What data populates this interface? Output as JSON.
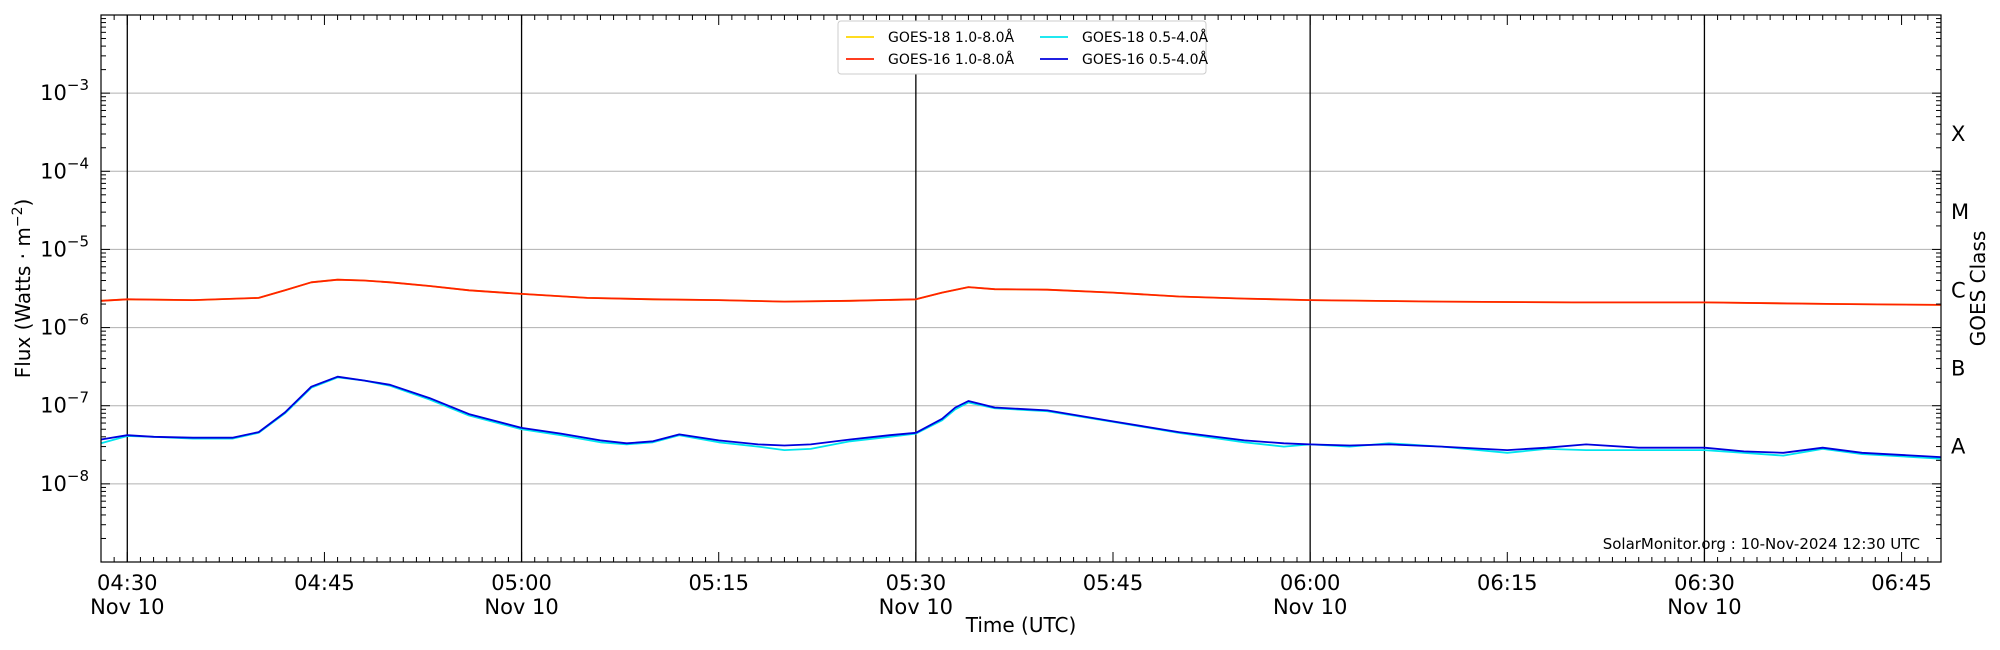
{
  "chart_data": {
    "type": "line",
    "x_axis": {
      "label": "Time (UTC)",
      "range": [
        "04:28",
        "06:48"
      ],
      "ticks": [
        {
          "time": "04:30",
          "label": "04:30",
          "date": "Nov 10"
        },
        {
          "time": "04:45",
          "label": "04:45",
          "date": ""
        },
        {
          "time": "05:00",
          "label": "05:00",
          "date": "Nov 10"
        },
        {
          "time": "05:15",
          "label": "05:15",
          "date": ""
        },
        {
          "time": "05:30",
          "label": "05:30",
          "date": "Nov 10"
        },
        {
          "time": "05:45",
          "label": "05:45",
          "date": ""
        },
        {
          "time": "06:00",
          "label": "06:00",
          "date": "Nov 10"
        },
        {
          "time": "06:15",
          "label": "06:15",
          "date": ""
        },
        {
          "time": "06:30",
          "label": "06:30",
          "date": "Nov 10"
        },
        {
          "time": "06:45",
          "label": "06:45",
          "date": ""
        }
      ],
      "vertical_lines": [
        "04:30",
        "05:00",
        "05:30",
        "06:00",
        "06:30"
      ]
    },
    "y_axis": {
      "label": "Flux (Watts · m⁻²)",
      "scale": "log",
      "range": [
        1e-09,
        0.01
      ],
      "ticks": [
        {
          "value": 1e-08,
          "base": "10",
          "exp": "−8"
        },
        {
          "value": 1e-07,
          "base": "10",
          "exp": "−7"
        },
        {
          "value": 1e-06,
          "base": "10",
          "exp": "−6"
        },
        {
          "value": 1e-05,
          "base": "10",
          "exp": "−5"
        },
        {
          "value": 0.0001,
          "base": "10",
          "exp": "−4"
        },
        {
          "value": 0.001,
          "base": "10",
          "exp": "−3"
        }
      ],
      "grid": true
    },
    "right_axis": {
      "label": "GOES Class",
      "classes": [
        {
          "label": "A",
          "value": 3e-08
        },
        {
          "label": "B",
          "value": 3e-07
        },
        {
          "label": "C",
          "value": 3e-06
        },
        {
          "label": "M",
          "value": 3e-05
        },
        {
          "label": "X",
          "value": 0.0003
        }
      ]
    },
    "legend": {
      "position": "top-center",
      "entries": [
        {
          "label": "GOES-18 1.0-8.0Å",
          "color": "#ffd700"
        },
        {
          "label": "GOES-18 0.5-4.0Å",
          "color": "#00e5ee"
        },
        {
          "label": "GOES-16 1.0-8.0Å",
          "color": "#ff2200"
        },
        {
          "label": "GOES-16 0.5-4.0Å",
          "color": "#0000dd"
        }
      ]
    },
    "annotation": "SolarMonitor.org : 10-Nov-2024 12:30 UTC",
    "series": [
      {
        "name": "GOES-18 1.0-8.0Å",
        "color": "#ffd700",
        "points": [
          [
            "04:28",
            2.2e-06
          ],
          [
            "04:30",
            2.3e-06
          ],
          [
            "04:35",
            2.25e-06
          ],
          [
            "04:40",
            2.4e-06
          ],
          [
            "04:42",
            3e-06
          ],
          [
            "04:44",
            3.8e-06
          ],
          [
            "04:46",
            4.1e-06
          ],
          [
            "04:48",
            4e-06
          ],
          [
            "04:50",
            3.8e-06
          ],
          [
            "04:53",
            3.4e-06
          ],
          [
            "04:56",
            3e-06
          ],
          [
            "05:00",
            2.7e-06
          ],
          [
            "05:05",
            2.4e-06
          ],
          [
            "05:10",
            2.3e-06
          ],
          [
            "05:15",
            2.25e-06
          ],
          [
            "05:20",
            2.15e-06
          ],
          [
            "05:25",
            2.2e-06
          ],
          [
            "05:30",
            2.3e-06
          ],
          [
            "05:32",
            2.8e-06
          ],
          [
            "05:34",
            3.3e-06
          ],
          [
            "05:36",
            3.1e-06
          ],
          [
            "05:40",
            3.05e-06
          ],
          [
            "05:45",
            2.8e-06
          ],
          [
            "05:50",
            2.5e-06
          ],
          [
            "05:55",
            2.35e-06
          ],
          [
            "06:00",
            2.25e-06
          ],
          [
            "06:10",
            2.15e-06
          ],
          [
            "06:20",
            2.1e-06
          ],
          [
            "06:30",
            2.1e-06
          ],
          [
            "06:40",
            2e-06
          ],
          [
            "06:48",
            1.95e-06
          ]
        ]
      },
      {
        "name": "GOES-16 1.0-8.0Å",
        "color": "#ff2200",
        "points": [
          [
            "04:28",
            2.2e-06
          ],
          [
            "04:30",
            2.3e-06
          ],
          [
            "04:35",
            2.25e-06
          ],
          [
            "04:40",
            2.4e-06
          ],
          [
            "04:42",
            3e-06
          ],
          [
            "04:44",
            3.8e-06
          ],
          [
            "04:46",
            4.1e-06
          ],
          [
            "04:48",
            4e-06
          ],
          [
            "04:50",
            3.8e-06
          ],
          [
            "04:53",
            3.4e-06
          ],
          [
            "04:56",
            3e-06
          ],
          [
            "05:00",
            2.7e-06
          ],
          [
            "05:05",
            2.4e-06
          ],
          [
            "05:10",
            2.3e-06
          ],
          [
            "05:15",
            2.25e-06
          ],
          [
            "05:20",
            2.15e-06
          ],
          [
            "05:25",
            2.2e-06
          ],
          [
            "05:30",
            2.3e-06
          ],
          [
            "05:32",
            2.8e-06
          ],
          [
            "05:34",
            3.3e-06
          ],
          [
            "05:36",
            3.1e-06
          ],
          [
            "05:40",
            3.05e-06
          ],
          [
            "05:45",
            2.8e-06
          ],
          [
            "05:50",
            2.5e-06
          ],
          [
            "05:55",
            2.35e-06
          ],
          [
            "06:00",
            2.25e-06
          ],
          [
            "06:10",
            2.15e-06
          ],
          [
            "06:20",
            2.1e-06
          ],
          [
            "06:30",
            2.1e-06
          ],
          [
            "06:40",
            2e-06
          ],
          [
            "06:48",
            1.95e-06
          ]
        ]
      },
      {
        "name": "GOES-18 0.5-4.0Å",
        "color": "#00e5ee",
        "points": [
          [
            "04:28",
            3.3e-08
          ],
          [
            "04:30",
            4.1e-08
          ],
          [
            "04:32",
            4e-08
          ],
          [
            "04:35",
            3.8e-08
          ],
          [
            "04:38",
            3.8e-08
          ],
          [
            "04:40",
            4.5e-08
          ],
          [
            "04:42",
            8e-08
          ],
          [
            "04:44",
            1.7e-07
          ],
          [
            "04:46",
            2.3e-07
          ],
          [
            "04:48",
            2.1e-07
          ],
          [
            "04:50",
            1.8e-07
          ],
          [
            "04:53",
            1.2e-07
          ],
          [
            "04:56",
            7.5e-08
          ],
          [
            "05:00",
            5e-08
          ],
          [
            "05:03",
            4.2e-08
          ],
          [
            "05:06",
            3.4e-08
          ],
          [
            "05:08",
            3.2e-08
          ],
          [
            "05:10",
            3.4e-08
          ],
          [
            "05:12",
            4.2e-08
          ],
          [
            "05:15",
            3.4e-08
          ],
          [
            "05:18",
            3e-08
          ],
          [
            "05:20",
            2.7e-08
          ],
          [
            "05:22",
            2.8e-08
          ],
          [
            "05:25",
            3.5e-08
          ],
          [
            "05:28",
            4e-08
          ],
          [
            "05:30",
            4.4e-08
          ],
          [
            "05:32",
            6.5e-08
          ],
          [
            "05:33",
            9e-08
          ],
          [
            "05:34",
            1.1e-07
          ],
          [
            "05:36",
            9.3e-08
          ],
          [
            "05:40",
            8.5e-08
          ],
          [
            "05:45",
            6.2e-08
          ],
          [
            "05:50",
            4.5e-08
          ],
          [
            "05:55",
            3.4e-08
          ],
          [
            "05:58",
            3e-08
          ],
          [
            "06:00",
            3.2e-08
          ],
          [
            "06:03",
            3e-08
          ],
          [
            "06:06",
            3.3e-08
          ],
          [
            "06:10",
            3e-08
          ],
          [
            "06:15",
            2.5e-08
          ],
          [
            "06:18",
            2.8e-08
          ],
          [
            "06:21",
            2.7e-08
          ],
          [
            "06:25",
            2.7e-08
          ],
          [
            "06:30",
            2.7e-08
          ],
          [
            "06:33",
            2.5e-08
          ],
          [
            "06:36",
            2.3e-08
          ],
          [
            "06:39",
            2.8e-08
          ],
          [
            "06:42",
            2.4e-08
          ],
          [
            "06:48",
            2.1e-08
          ]
        ]
      },
      {
        "name": "GOES-16 0.5-4.0Å",
        "color": "#0000dd",
        "points": [
          [
            "04:28",
            3.7e-08
          ],
          [
            "04:30",
            4.2e-08
          ],
          [
            "04:32",
            4e-08
          ],
          [
            "04:35",
            3.9e-08
          ],
          [
            "04:38",
            3.9e-08
          ],
          [
            "04:40",
            4.6e-08
          ],
          [
            "04:42",
            8.2e-08
          ],
          [
            "04:44",
            1.75e-07
          ],
          [
            "04:46",
            2.35e-07
          ],
          [
            "04:48",
            2.1e-07
          ],
          [
            "04:50",
            1.85e-07
          ],
          [
            "04:53",
            1.25e-07
          ],
          [
            "04:56",
            7.8e-08
          ],
          [
            "05:00",
            5.2e-08
          ],
          [
            "05:03",
            4.4e-08
          ],
          [
            "05:06",
            3.6e-08
          ],
          [
            "05:08",
            3.3e-08
          ],
          [
            "05:10",
            3.5e-08
          ],
          [
            "05:12",
            4.3e-08
          ],
          [
            "05:15",
            3.6e-08
          ],
          [
            "05:18",
            3.2e-08
          ],
          [
            "05:20",
            3.1e-08
          ],
          [
            "05:22",
            3.2e-08
          ],
          [
            "05:25",
            3.7e-08
          ],
          [
            "05:28",
            4.2e-08
          ],
          [
            "05:30",
            4.5e-08
          ],
          [
            "05:32",
            6.8e-08
          ],
          [
            "05:33",
            9.5e-08
          ],
          [
            "05:34",
            1.15e-07
          ],
          [
            "05:36",
            9.5e-08
          ],
          [
            "05:40",
            8.7e-08
          ],
          [
            "05:45",
            6.3e-08
          ],
          [
            "05:50",
            4.6e-08
          ],
          [
            "05:55",
            3.6e-08
          ],
          [
            "05:58",
            3.3e-08
          ],
          [
            "06:00",
            3.2e-08
          ],
          [
            "06:03",
            3.1e-08
          ],
          [
            "06:06",
            3.2e-08
          ],
          [
            "06:10",
            3e-08
          ],
          [
            "06:15",
            2.7e-08
          ],
          [
            "06:18",
            2.9e-08
          ],
          [
            "06:21",
            3.2e-08
          ],
          [
            "06:25",
            2.9e-08
          ],
          [
            "06:30",
            2.9e-08
          ],
          [
            "06:33",
            2.6e-08
          ],
          [
            "06:36",
            2.5e-08
          ],
          [
            "06:39",
            2.9e-08
          ],
          [
            "06:42",
            2.5e-08
          ],
          [
            "06:48",
            2.2e-08
          ]
        ]
      }
    ]
  }
}
